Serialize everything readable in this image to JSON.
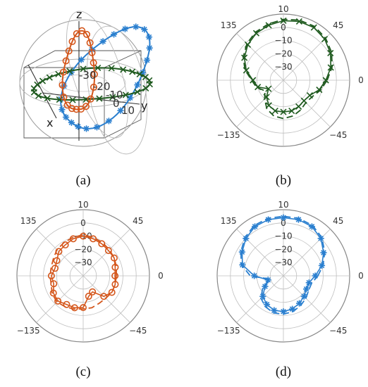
{
  "colors": {
    "green": "#1f5a1f",
    "orange": "#d4561b",
    "blue": "#2a7fcf",
    "grid": "#bfbfbf",
    "frame": "#555555"
  },
  "chart_data": [
    {
      "type": "polar-3d",
      "panel": "(a)",
      "axis_labels": [
        "z",
        "x",
        "y"
      ],
      "radial_ticks": [
        "-30",
        "-20",
        "-10",
        "0",
        "10"
      ],
      "series": [
        {
          "color": "green",
          "marker": "x",
          "ring": "horizontal"
        },
        {
          "color": "orange",
          "marker": "o",
          "ring": "vertical-xz"
        },
        {
          "color": "blue",
          "marker": "*",
          "ring": "vertical-yz"
        }
      ]
    },
    {
      "type": "polar",
      "panel": "(b)",
      "angle_ticks": [
        "135",
        "45",
        "0",
        "-135",
        "-45"
      ],
      "radial_ticks": [
        "10",
        "0",
        "-10",
        "-20",
        "-30"
      ],
      "rlim": [
        -40,
        10
      ],
      "series_color": "green",
      "marker": "x",
      "theta_deg": [
        0,
        15,
        30,
        45,
        60,
        75,
        90,
        105,
        120,
        135,
        150,
        165,
        180,
        195,
        210,
        225,
        240,
        255,
        270,
        285,
        300,
        315,
        330,
        345
      ],
      "r_measured": [
        -8,
        -3,
        1,
        4,
        6,
        6,
        5,
        3,
        1,
        -2,
        -6,
        -11,
        -17,
        -20,
        -27,
        -22,
        -18,
        -16,
        -16,
        -16,
        -17,
        -18,
        -17,
        -12
      ],
      "r_simulated": [
        -7,
        -2,
        2,
        5,
        7,
        7,
        6,
        4,
        2,
        -1,
        -5,
        -10,
        -16,
        -19,
        -24,
        -20,
        -15,
        -12,
        -11,
        -12,
        -14,
        -16,
        -15,
        -11
      ]
    },
    {
      "type": "polar",
      "panel": "(c)",
      "angle_ticks": [
        "135",
        "45",
        "0",
        "-135",
        "-45"
      ],
      "radial_ticks": [
        "10",
        "0",
        "-10",
        "-20",
        "-30"
      ],
      "rlim": [
        -40,
        10
      ],
      "series_color": "orange",
      "marker": "o",
      "theta_deg": [
        0,
        15,
        30,
        45,
        60,
        75,
        90,
        105,
        120,
        135,
        150,
        165,
        180,
        195,
        210,
        225,
        240,
        255,
        270,
        285,
        300,
        315,
        330,
        345
      ],
      "r_measured": [
        -16,
        -15,
        -13,
        -13,
        -12,
        -11,
        -10,
        -11,
        -13,
        -14,
        -17,
        -18,
        -16,
        -17,
        -14,
        -13,
        -15,
        -15,
        -16,
        -24,
        -26,
        -18,
        -15,
        -15
      ],
      "r_simulated": [
        -15,
        -14,
        -13,
        -12,
        -11,
        -10,
        -9,
        -10,
        -11,
        -12,
        -14,
        -15,
        -15,
        -15,
        -13,
        -12,
        -13,
        -14,
        -15,
        -15,
        -16,
        -16,
        -15,
        -15
      ]
    },
    {
      "type": "polar",
      "panel": "(d)",
      "angle_ticks": [
        "135",
        "45",
        "0",
        "-135",
        "-45"
      ],
      "radial_ticks": [
        "10",
        "0",
        "-10",
        "-20",
        "-30"
      ],
      "rlim": [
        -40,
        10
      ],
      "series_color": "blue",
      "marker": "*",
      "theta_deg": [
        0,
        15,
        30,
        45,
        60,
        75,
        90,
        105,
        120,
        135,
        150,
        165,
        180,
        195,
        210,
        225,
        240,
        255,
        270,
        285,
        300,
        315,
        330,
        345
      ],
      "r_measured": [
        -16,
        -10,
        -5,
        0,
        3,
        4,
        4,
        4,
        3,
        0,
        -4,
        -8,
        -18,
        -28,
        -24,
        -18,
        -15,
        -13,
        -13,
        -14,
        -16,
        -18,
        -20,
        -20
      ],
      "r_simulated": [
        -14,
        -9,
        -4,
        1,
        4,
        5,
        5,
        5,
        4,
        1,
        -3,
        -7,
        -15,
        -30,
        -22,
        -16,
        -13,
        -11,
        -11,
        -12,
        -14,
        -16,
        -18,
        -18
      ]
    }
  ],
  "captions": [
    "(a)",
    "(b)",
    "(c)",
    "(d)"
  ]
}
